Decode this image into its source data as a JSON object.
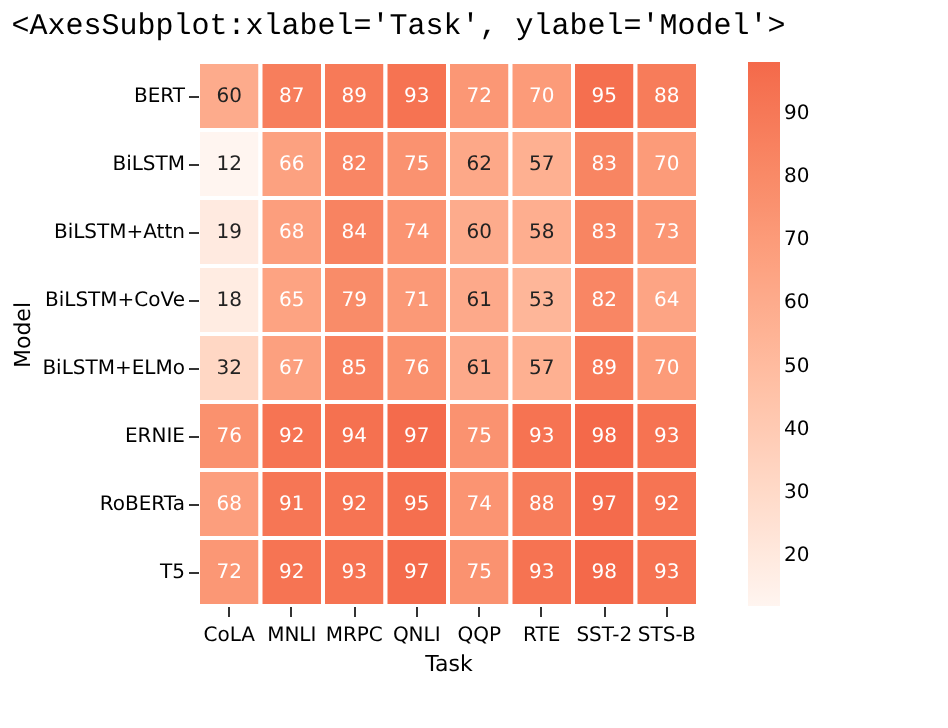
{
  "chart_data": {
    "type": "heatmap",
    "title": "<AxesSubplot:xlabel='Task', ylabel='Model'>",
    "xlabel": "Task",
    "ylabel": "Model",
    "categories": [
      "CoLA",
      "MNLI",
      "MRPC",
      "QNLI",
      "QQP",
      "RTE",
      "SST-2",
      "STS-B"
    ],
    "y_categories": [
      "BERT",
      "BiLSTM",
      "BiLSTM+Attn",
      "BiLSTM+CoVe",
      "BiLSTM+ELMo",
      "ERNIE",
      "RoBERTa",
      "T5"
    ],
    "cells": [
      [
        60,
        87,
        89,
        93,
        72,
        70,
        95,
        88
      ],
      [
        12,
        66,
        82,
        75,
        62,
        57,
        83,
        70
      ],
      [
        19,
        68,
        84,
        74,
        60,
        58,
        83,
        73
      ],
      [
        18,
        65,
        79,
        71,
        61,
        53,
        82,
        64
      ],
      [
        32,
        67,
        85,
        76,
        61,
        57,
        89,
        70
      ],
      [
        76,
        92,
        94,
        97,
        75,
        93,
        98,
        93
      ],
      [
        68,
        91,
        92,
        95,
        74,
        88,
        97,
        92
      ],
      [
        72,
        92,
        93,
        97,
        75,
        93,
        98,
        93
      ]
    ],
    "data_labels": true,
    "clim": [
      12,
      98
    ],
    "cticks": [
      20,
      30,
      40,
      50,
      60,
      70,
      80,
      90
    ],
    "colors": [
      "#fff5f0",
      "#f4694a"
    ]
  }
}
